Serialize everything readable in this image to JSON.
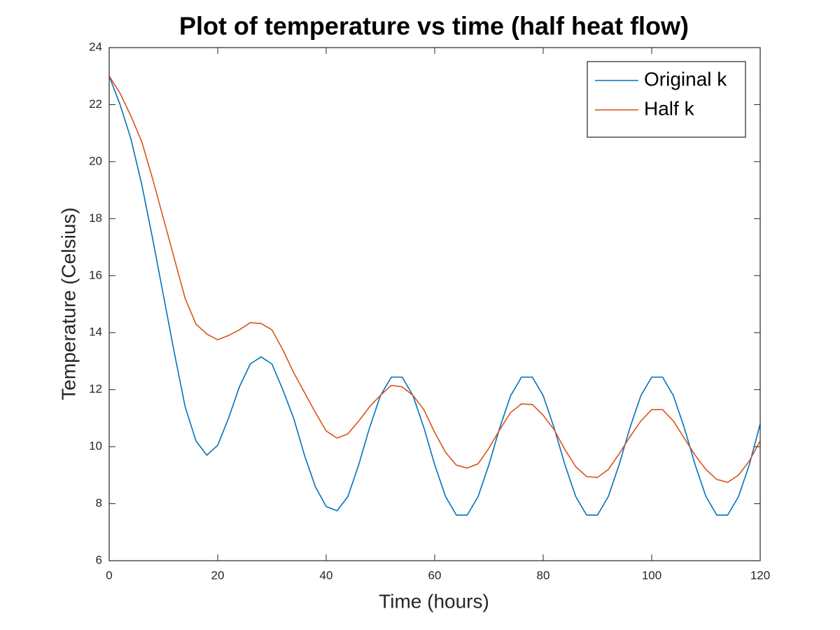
{
  "chart_data": {
    "type": "line",
    "title": "Plot of temperature vs time (half heat flow)",
    "xlabel": "Time (hours)",
    "ylabel": "Temperature (Celsius)",
    "x": [
      0,
      2,
      4,
      6,
      8,
      10,
      12,
      14,
      16,
      18,
      20,
      22,
      24,
      26,
      28,
      30,
      32,
      34,
      36,
      38,
      40,
      42,
      44,
      46,
      48,
      50,
      52,
      54,
      56,
      58,
      60,
      62,
      64,
      66,
      68,
      70,
      72,
      74,
      76,
      78,
      80,
      82,
      84,
      86,
      88,
      90,
      92,
      94,
      96,
      98,
      100,
      102,
      104,
      106,
      108,
      110,
      112,
      114,
      116,
      118,
      120
    ],
    "series": [
      {
        "name": "Original k",
        "color": "#0072BD",
        "values": [
          23.0,
          22.0,
          20.8,
          19.2,
          17.3,
          15.3,
          13.3,
          11.4,
          10.2,
          9.7,
          10.05,
          11.0,
          12.1,
          12.9,
          13.15,
          12.9,
          12.0,
          11.0,
          9.7,
          8.6,
          7.9,
          7.75,
          8.25,
          9.37,
          10.67,
          11.79,
          12.44,
          12.44,
          11.79,
          10.67,
          9.37,
          8.25,
          7.6,
          7.6,
          8.25,
          9.37,
          10.67,
          11.79,
          12.44,
          12.44,
          11.79,
          10.67,
          9.37,
          8.25,
          7.6,
          7.6,
          8.25,
          9.37,
          10.67,
          11.79,
          12.44,
          12.44,
          11.79,
          10.67,
          9.37,
          8.25,
          7.6,
          7.6,
          8.25,
          9.37,
          10.8
        ]
      },
      {
        "name": "Half k",
        "color": "#D95319",
        "values": [
          23.0,
          22.4,
          21.6,
          20.7,
          19.4,
          18.0,
          16.6,
          15.2,
          14.3,
          13.95,
          13.75,
          13.9,
          14.1,
          14.35,
          14.32,
          14.1,
          13.4,
          12.6,
          11.9,
          11.2,
          10.55,
          10.3,
          10.45,
          10.9,
          11.4,
          11.8,
          12.15,
          12.1,
          11.8,
          11.3,
          10.5,
          9.8,
          9.35,
          9.25,
          9.4,
          9.95,
          10.6,
          11.2,
          11.5,
          11.48,
          11.1,
          10.6,
          9.9,
          9.3,
          8.95,
          8.92,
          9.2,
          9.75,
          10.35,
          10.9,
          11.3,
          11.3,
          10.9,
          10.3,
          9.7,
          9.2,
          8.85,
          8.75,
          9.0,
          9.5,
          10.2
        ]
      }
    ],
    "xlim": [
      0,
      120
    ],
    "xticks": [
      0,
      20,
      40,
      60,
      80,
      100,
      120
    ],
    "ylim": [
      6,
      24
    ],
    "yticks": [
      6,
      8,
      10,
      12,
      14,
      16,
      18,
      20,
      22,
      24
    ],
    "legend": "upper right"
  }
}
